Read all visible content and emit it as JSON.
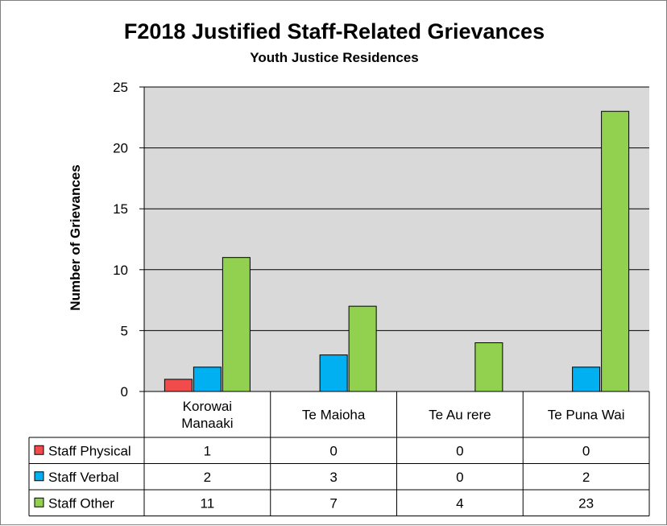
{
  "chart_data": {
    "type": "bar",
    "title": "F2018 Justified Staff-Related Grievances",
    "subtitle": "Youth Justice Residences",
    "ylabel": "Number of Grievances",
    "xlabel": "",
    "ylim": [
      0,
      25
    ],
    "yticks": [
      0,
      5,
      10,
      15,
      20,
      25
    ],
    "grid": true,
    "categories": [
      [
        "Korowai",
        "Manaaki"
      ],
      [
        "Te Maioha"
      ],
      [
        "Te Au rere"
      ],
      [
        "Te Puna Wai"
      ]
    ],
    "series": [
      {
        "name": "Staff Physical",
        "color": "#f24b4b",
        "values": [
          1,
          0,
          0,
          0
        ]
      },
      {
        "name": "Staff Verbal",
        "color": "#00b0f0",
        "values": [
          2,
          3,
          0,
          2
        ]
      },
      {
        "name": "Staff Other",
        "color": "#92d050",
        "values": [
          11,
          7,
          4,
          23
        ]
      }
    ],
    "plot_background": "#d9d9d9",
    "legend": "data-table"
  }
}
